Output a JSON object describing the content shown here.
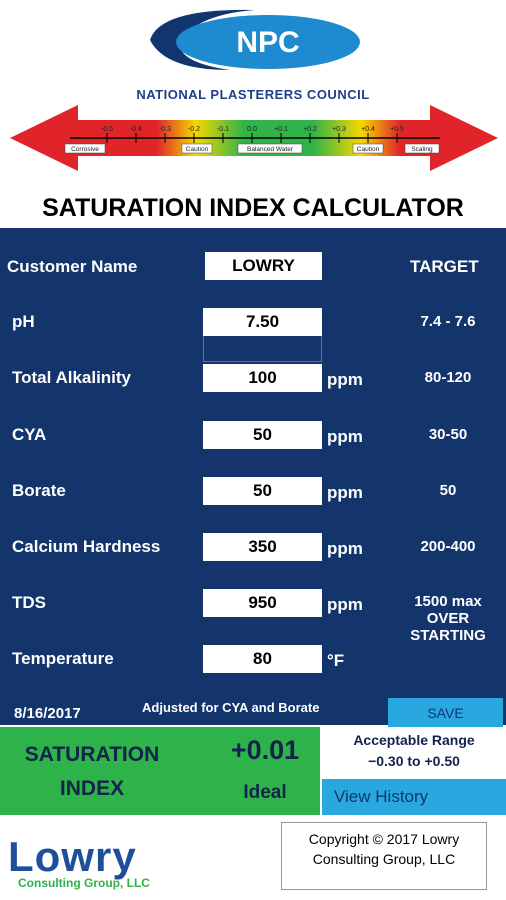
{
  "header": {
    "logo": "NPC",
    "organization": "NATIONAL PLASTERERS COUNCIL",
    "scale_ticks": [
      "-0.5",
      "-0.4",
      "-0.3",
      "-0.2",
      "-0.1",
      "0.0",
      "+0.1",
      "+0.2",
      "+0.3",
      "+0.4",
      "+0.5"
    ],
    "scale_labels": [
      "Corrosive",
      "Caution",
      "Balanced Water",
      "Caution",
      "Scaling"
    ]
  },
  "title": "SATURATION INDEX CALCULATOR",
  "customer": {
    "label": "Customer Name",
    "value": "LOWRY",
    "target_header": "TARGET"
  },
  "fields": [
    {
      "label": "pH",
      "value": "7.50",
      "target": "7.4 - 7.6"
    },
    {
      "label": "Total Alkalinity",
      "value": "100",
      "unit": "ppm",
      "target": "80-120"
    },
    {
      "label": "CYA",
      "value": "50",
      "unit": "ppm",
      "target": "30-50"
    },
    {
      "label": "Borate",
      "value": "50",
      "unit": "ppm",
      "target": "50"
    },
    {
      "label": "Calcium Hardness",
      "value": "350",
      "unit": "ppm",
      "target": "200-400"
    },
    {
      "label": "TDS",
      "value": "950",
      "unit": "ppm",
      "target": "1500 max OVER STARTING"
    },
    {
      "label": "Temperature",
      "value": "80",
      "unit": "°F"
    }
  ],
  "date": "8/16/2017",
  "note": "Adjusted for CYA and Borate",
  "save": "SAVE",
  "result": {
    "label": "SATURATION INDEX",
    "value": "+0.01",
    "status": "Ideal",
    "range_label": "Acceptable Range",
    "range": "−0.30 to +0.50",
    "history": "View History"
  },
  "footer": {
    "company": "Lowry",
    "company_sub": "Consulting Group, LLC",
    "copyright": "Copyright © 2017 Lowry Consulting Group, LLC"
  }
}
